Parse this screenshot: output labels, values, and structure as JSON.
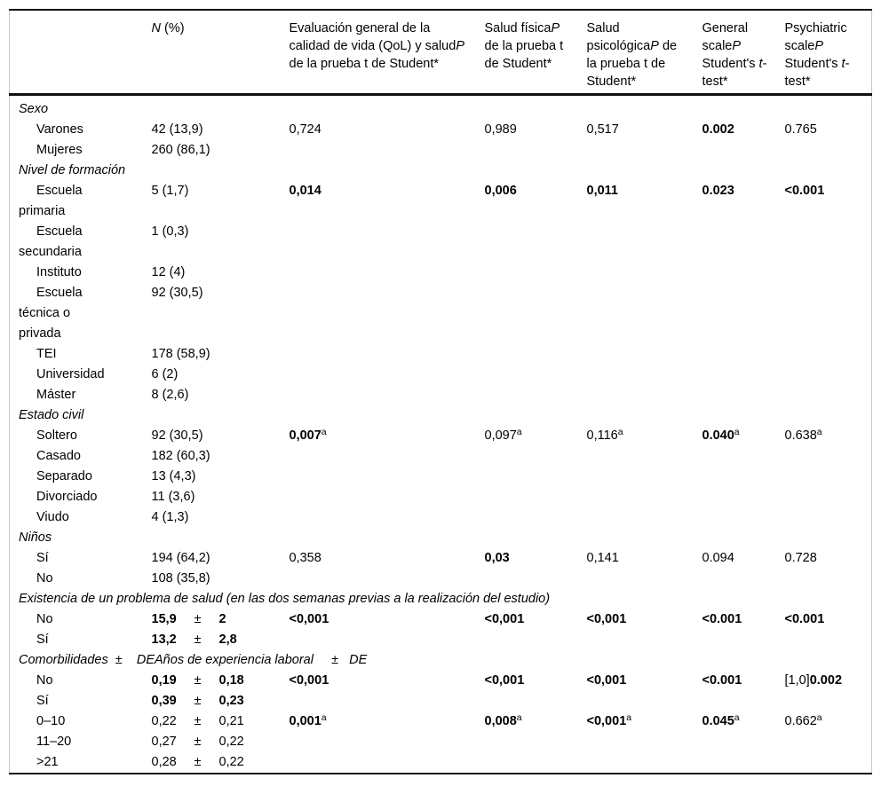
{
  "colors": {
    "background": "#ffffff",
    "text": "#000000",
    "rule": "#111111",
    "side_border": "#c9c9c9"
  },
  "table": {
    "pm_symbol": "±",
    "columns": [
      {
        "key": "row-label",
        "segments": []
      },
      {
        "key": "n-percent",
        "segments": [
          {
            "t": "N",
            "i": true
          },
          {
            "t": " (%)"
          }
        ]
      },
      {
        "key": "qol-p",
        "segments": [
          {
            "t": "Evaluación general de la calidad de vida (QoL) y salud"
          },
          {
            "t": "P",
            "i": true
          },
          {
            "t": " de la prueba t de Student*"
          }
        ]
      },
      {
        "key": "salud-fisica-p",
        "segments": [
          {
            "t": "Salud física"
          },
          {
            "t": "P",
            "i": true
          },
          {
            "t": " de la prueba t de Student*"
          }
        ]
      },
      {
        "key": "salud-psicologica-p",
        "segments": [
          {
            "t": "Salud psicológica"
          },
          {
            "t": "P",
            "i": true
          },
          {
            "t": " de la prueba t de Student*"
          }
        ]
      },
      {
        "key": "general-scale-p",
        "segments": [
          {
            "t": "General scale"
          },
          {
            "t": "P",
            "i": true
          },
          {
            "t": " Student's "
          },
          {
            "t": "t",
            "i": true
          },
          {
            "t": "-test*"
          }
        ]
      },
      {
        "key": "psychiatric-scale-p",
        "segments": [
          {
            "t": "Psychiatric scale"
          },
          {
            "t": "P",
            "i": true
          },
          {
            "t": " Student's "
          },
          {
            "t": "t",
            "i": true
          },
          {
            "t": "-test*"
          }
        ]
      }
    ],
    "rows": [
      {
        "type": "section",
        "label": "Sexo"
      },
      {
        "type": "data",
        "label": "Varones",
        "n": {
          "text": "42 (13,9)"
        },
        "p": [
          {
            "t": "0,724"
          },
          {
            "t": "0,989"
          },
          {
            "t": "0,517"
          },
          {
            "t": "0.002",
            "b": true
          },
          {
            "t": "0.765"
          }
        ]
      },
      {
        "type": "data",
        "label": "Mujeres",
        "n": {
          "text": "260 (86,1)"
        },
        "p": [
          null,
          null,
          null,
          null,
          null
        ]
      },
      {
        "type": "section",
        "label": "Nivel de formación"
      },
      {
        "type": "data",
        "label": "Escuela primaria",
        "n": {
          "text": "5 (1,7)"
        },
        "p": [
          {
            "t": "0,014",
            "b": true
          },
          {
            "t": "0,006",
            "b": true
          },
          {
            "t": "0,011",
            "b": true
          },
          {
            "t": "0.023",
            "b": true
          },
          {
            "t": "<0.001",
            "b": true
          }
        ]
      },
      {
        "type": "data",
        "label": "Escuela secundaria",
        "n": {
          "text": "1 (0,3)"
        },
        "p": [
          null,
          null,
          null,
          null,
          null
        ]
      },
      {
        "type": "data",
        "label": "Instituto",
        "n": {
          "text": "12 (4)"
        },
        "p": [
          null,
          null,
          null,
          null,
          null
        ]
      },
      {
        "type": "data",
        "label": "Escuela técnica o privada",
        "n": {
          "text": "92 (30,5)"
        },
        "p": [
          null,
          null,
          null,
          null,
          null
        ]
      },
      {
        "type": "data",
        "label": "TEI",
        "n": {
          "text": "178 (58,9)"
        },
        "p": [
          null,
          null,
          null,
          null,
          null
        ]
      },
      {
        "type": "data",
        "label": "Universidad",
        "n": {
          "text": "6 (2)"
        },
        "p": [
          null,
          null,
          null,
          null,
          null
        ]
      },
      {
        "type": "data",
        "label": "Máster",
        "n": {
          "text": "8 (2,6)"
        },
        "p": [
          null,
          null,
          null,
          null,
          null
        ]
      },
      {
        "type": "section",
        "label": "Estado civil"
      },
      {
        "type": "data",
        "label": "Soltero",
        "n": {
          "text": "92 (30,5)"
        },
        "p": [
          {
            "t": "0,007",
            "b": true,
            "sup": "a"
          },
          {
            "t": "0,097",
            "sup": "a"
          },
          {
            "t": "0,116",
            "sup": "a"
          },
          {
            "t": "0.040",
            "b": true,
            "sup": "a"
          },
          {
            "t": "0.638",
            "sup": "a"
          }
        ]
      },
      {
        "type": "data",
        "label": "Casado",
        "n": {
          "text": "182 (60,3)"
        },
        "p": [
          null,
          null,
          null,
          null,
          null
        ]
      },
      {
        "type": "data",
        "label": "Separado",
        "n": {
          "text": "13 (4,3)"
        },
        "p": [
          null,
          null,
          null,
          null,
          null
        ]
      },
      {
        "type": "data",
        "label": "Divorciado",
        "n": {
          "text": "11 (3,6)"
        },
        "p": [
          null,
          null,
          null,
          null,
          null
        ]
      },
      {
        "type": "data",
        "label": "Viudo",
        "n": {
          "text": "4 (1,3)"
        },
        "p": [
          null,
          null,
          null,
          null,
          null
        ]
      },
      {
        "type": "section",
        "label": "Niños"
      },
      {
        "type": "data",
        "label": "Sí",
        "n": {
          "text": "194 (64,2)"
        },
        "p": [
          {
            "t": "0,358"
          },
          {
            "t": "0,03",
            "b": true
          },
          {
            "t": "0,141"
          },
          {
            "t": "0.094"
          },
          {
            "t": "0.728"
          }
        ]
      },
      {
        "type": "data",
        "label": "No",
        "n": {
          "text": "108 (35,8)"
        },
        "p": [
          null,
          null,
          null,
          null,
          null
        ]
      },
      {
        "type": "section",
        "label": "Existencia de un problema de salud (en las dos semanas previas a la realización del estudio)"
      },
      {
        "type": "data",
        "label": "No",
        "n": {
          "v1": "15,9",
          "v2": "2",
          "bold": true
        },
        "p": [
          {
            "t": "<0,001",
            "b": true
          },
          {
            "t": "<0,001",
            "b": true
          },
          {
            "t": "<0,001",
            "b": true
          },
          {
            "t": "<0.001",
            "b": true
          },
          {
            "t": "<0.001",
            "b": true
          }
        ]
      },
      {
        "type": "data",
        "label": "Sí",
        "n": {
          "v1": "13,2",
          "v2": "2,8",
          "bold": true
        },
        "p": [
          null,
          null,
          null,
          null,
          null
        ]
      },
      {
        "type": "section",
        "label": "Comorbilidades  ±    DEAños de experiencia laboral     ±   DE"
      },
      {
        "type": "data",
        "label": "No",
        "n": {
          "v1": "0,19",
          "v2": "0,18",
          "bold": true
        },
        "p": [
          {
            "t": "<0,001",
            "b": true
          },
          {
            "t": "<0,001",
            "b": true
          },
          {
            "t": "<0,001",
            "b": true
          },
          {
            "t": "<0.001",
            "b": true
          },
          {
            "pre": "[1,0]",
            "t": "0.002",
            "b": true
          }
        ]
      },
      {
        "type": "data",
        "label": "Sí",
        "n": {
          "v1": "0,39",
          "v2": "0,23",
          "bold": true
        },
        "p": [
          null,
          null,
          null,
          null,
          null
        ]
      },
      {
        "type": "data",
        "label": "0–10",
        "n": {
          "v1": "0,22",
          "v2": "0,21"
        },
        "p": [
          {
            "t": "0,001",
            "b": true,
            "sup": "a"
          },
          {
            "t": "0,008",
            "b": true,
            "sup": "a"
          },
          {
            "t": "<0,001",
            "b": true,
            "sup": "a"
          },
          {
            "t": "0.045",
            "b": true,
            "sup": "a"
          },
          {
            "t": "0.662",
            "sup": "a"
          }
        ]
      },
      {
        "type": "data",
        "label": "11–20",
        "n": {
          "v1": "0,27",
          "v2": "0,22"
        },
        "p": [
          null,
          null,
          null,
          null,
          null
        ]
      },
      {
        "type": "data",
        "label": ">21",
        "n": {
          "v1": "0,28",
          "v2": "0,22"
        },
        "p": [
          null,
          null,
          null,
          null,
          null
        ]
      }
    ]
  }
}
